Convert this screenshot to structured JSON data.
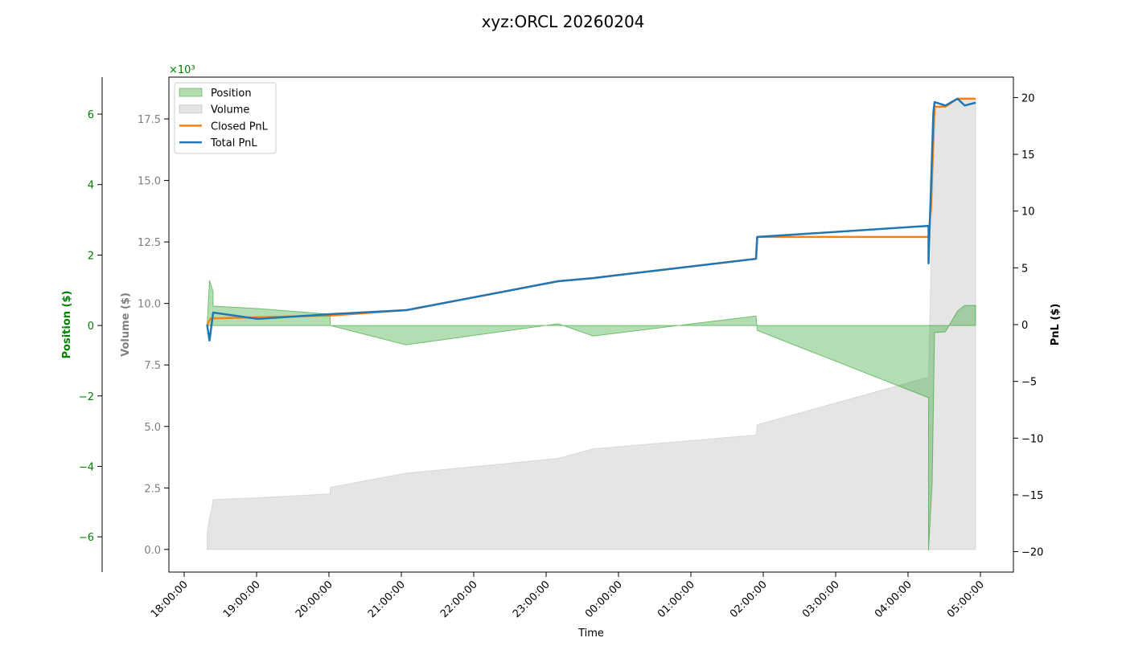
{
  "chart_data": {
    "type": "area",
    "title": "xyz:ORCL 20260204",
    "xlabel": "Time",
    "x_ticks": [
      "18:00:00",
      "19:00:00",
      "20:00:00",
      "21:00:00",
      "22:00:00",
      "23:00:00",
      "00:00:00",
      "01:00:00",
      "02:00:00",
      "03:00:00",
      "04:00:00",
      "05:00:00"
    ],
    "axes": {
      "position": {
        "label": "Position ($)",
        "multiplier": "×10³",
        "ticks": [
          -6,
          -4,
          -2,
          0,
          2,
          4,
          6
        ],
        "tick_labels": [
          "−6",
          "−4",
          "−2",
          "0",
          "2",
          "4",
          "6"
        ],
        "ylim": [
          -7.0,
          7.05
        ],
        "color": "#008000"
      },
      "volume": {
        "label": "Volume ($)",
        "ticks": [
          0,
          2.5,
          5,
          7.5,
          10,
          12.5,
          15,
          17.5
        ],
        "tick_labels": [
          "0.0",
          "2.5",
          "5.0",
          "7.5",
          "10.0",
          "12.5",
          "15.0",
          "17.5"
        ],
        "ylim": [
          -0.92,
          19.2
        ],
        "color": "#808080"
      },
      "pnl": {
        "label": "PnL ($)",
        "ticks": [
          -20,
          -15,
          -10,
          -5,
          0,
          5,
          10,
          15,
          20
        ],
        "tick_labels": [
          "−20",
          "−15",
          "−10",
          "−5",
          "0",
          "5",
          "10",
          "15",
          "20"
        ],
        "ylim": [
          -21.8,
          21.8
        ],
        "color": "#000000"
      }
    },
    "legend": {
      "placement": "upper-left",
      "entries": [
        "Position",
        "Volume",
        "Closed PnL",
        "Total PnL"
      ]
    },
    "series": [
      {
        "name": "Position",
        "axis": "position",
        "kind": "fill",
        "color": "#2ca02c",
        "points": [
          [
            "18:19",
            0
          ],
          [
            "18:21",
            1.28
          ],
          [
            "18:24",
            0.96
          ],
          [
            "18:24",
            0.55
          ],
          [
            "19:01",
            0.48
          ],
          [
            "20:01",
            0.32
          ],
          [
            "20:01",
            0
          ],
          [
            "21:04",
            -0.55
          ],
          [
            "23:10",
            0.05
          ],
          [
            "23:39",
            -0.3
          ],
          [
            "01:54",
            0.27
          ],
          [
            "01:55",
            -0.14
          ],
          [
            "04:17",
            -2.05
          ],
          [
            "04:17",
            -6.39
          ],
          [
            "04:20",
            -4.47
          ],
          [
            "04:22",
            -0.2
          ],
          [
            "04:31",
            -0.18
          ],
          [
            "04:41",
            0.41
          ],
          [
            "04:47",
            0.57
          ],
          [
            "04:56",
            0.57
          ]
        ]
      },
      {
        "name": "Volume",
        "axis": "volume",
        "kind": "fill",
        "color": "#a9a9a9",
        "points": [
          [
            "18:19",
            0
          ],
          [
            "18:19",
            0.62
          ],
          [
            "18:21",
            1.3
          ],
          [
            "18:23",
            1.67
          ],
          [
            "18:24",
            2.03
          ],
          [
            "19:01",
            2.1
          ],
          [
            "20:01",
            2.26
          ],
          [
            "20:01",
            2.52
          ],
          [
            "21:04",
            3.1
          ],
          [
            "23:10",
            3.7
          ],
          [
            "23:39",
            4.09
          ],
          [
            "01:54",
            4.65
          ],
          [
            "01:55",
            5.07
          ],
          [
            "04:17",
            7.0
          ],
          [
            "04:17",
            7.0
          ],
          [
            "04:22",
            17.9
          ],
          [
            "04:31",
            18.0
          ],
          [
            "04:41",
            18.35
          ],
          [
            "04:56",
            18.35
          ]
        ]
      },
      {
        "name": "Closed PnL",
        "axis": "pnl",
        "kind": "line",
        "color": "#ff7f0e",
        "points": [
          [
            "18:19",
            0
          ],
          [
            "18:22",
            0.55
          ],
          [
            "20:01",
            0.8
          ],
          [
            "21:04",
            1.27
          ],
          [
            "23:10",
            3.82
          ],
          [
            "23:39",
            4.1
          ],
          [
            "01:54",
            5.8
          ],
          [
            "01:55",
            7.72
          ],
          [
            "04:17",
            7.72
          ],
          [
            "04:19",
            10.3
          ],
          [
            "04:22",
            19.2
          ],
          [
            "04:31",
            19.2
          ],
          [
            "04:41",
            19.9
          ],
          [
            "04:56",
            19.9
          ]
        ]
      },
      {
        "name": "Total PnL",
        "axis": "pnl",
        "kind": "line",
        "color": "#1f77b4",
        "points": [
          [
            "18:19",
            0
          ],
          [
            "18:21",
            -1.4
          ],
          [
            "18:24",
            1.06
          ],
          [
            "19:01",
            0.5
          ],
          [
            "20:01",
            0.92
          ],
          [
            "21:04",
            1.27
          ],
          [
            "23:10",
            3.82
          ],
          [
            "23:39",
            4.1
          ],
          [
            "01:54",
            5.8
          ],
          [
            "01:55",
            7.72
          ],
          [
            "04:17",
            8.7
          ],
          [
            "04:17",
            5.4
          ],
          [
            "04:21",
            18.7
          ],
          [
            "04:22",
            19.6
          ],
          [
            "04:31",
            19.3
          ],
          [
            "04:41",
            19.9
          ],
          [
            "04:47",
            19.3
          ],
          [
            "04:56",
            19.55
          ]
        ]
      }
    ]
  }
}
